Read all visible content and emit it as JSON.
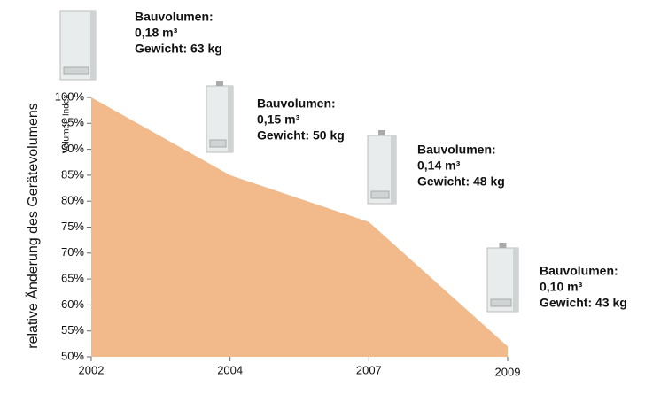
{
  "chart_data": {
    "type": "area",
    "y_label": "relative Änderung des Gerätevolumens",
    "y_sublabel": "Volumen-Index",
    "categories": [
      "2002",
      "2004",
      "2007",
      "2009"
    ],
    "values": [
      100,
      85,
      76,
      52
    ],
    "color": "#f2b98a",
    "ylim": [
      50,
      100
    ],
    "yticks": [
      {
        "value": 50,
        "label": "50%"
      },
      {
        "value": 55,
        "label": "55%"
      },
      {
        "value": 60,
        "label": "60%"
      },
      {
        "value": 65,
        "label": "65%"
      },
      {
        "value": 70,
        "label": "70%"
      },
      {
        "value": 75,
        "label": "75%"
      },
      {
        "value": 80,
        "label": "80%"
      },
      {
        "value": 85,
        "label": "85%"
      },
      {
        "value": 90,
        "label": "90%"
      },
      {
        "value": 95,
        "label": "95%"
      },
      {
        "value": 100,
        "label": "100%"
      }
    ],
    "annotations": [
      {
        "lines": [
          "Bauvolumen:",
          "0,18 m³",
          "Gewicht: 63 kg"
        ]
      },
      {
        "lines": [
          "Bauvolumen:",
          "0,15 m³",
          "Gewicht: 50 kg"
        ]
      },
      {
        "lines": [
          "Bauvolumen:",
          "0,14 m³",
          "Gewicht: 48 kg"
        ]
      },
      {
        "lines": [
          "Bauvolumen:",
          "0,10 m³",
          "Gewicht: 43 kg"
        ]
      }
    ]
  }
}
